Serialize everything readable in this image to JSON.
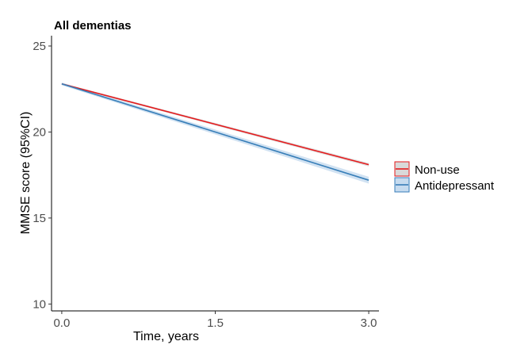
{
  "chart_data": {
    "type": "line",
    "title": "All dementias",
    "xlabel": "Time, years",
    "ylabel": "MMSE score (95%CI)",
    "xlim": [
      -0.1,
      3.1
    ],
    "ylim": [
      9.6,
      25.6
    ],
    "xticks": [
      0.0,
      1.5,
      3.0
    ],
    "xtick_labels": [
      "0.0",
      "1.5",
      "3.0"
    ],
    "yticks": [
      10,
      15,
      20,
      25
    ],
    "ytick_labels": [
      "10",
      "15",
      "20",
      "25"
    ],
    "grid": false,
    "legend_position": "right",
    "series": [
      {
        "name": "Non-use",
        "color": "#e41a1c",
        "band_color": "#d9d9d9",
        "x": [
          0.0,
          3.0
        ],
        "y": [
          22.8,
          18.1
        ],
        "lower": [
          22.75,
          18.0
        ],
        "upper": [
          22.85,
          18.2
        ]
      },
      {
        "name": "Antidepressant",
        "color": "#377eb8",
        "band_color": "#c6dbef",
        "x": [
          0.0,
          3.0
        ],
        "y": [
          22.8,
          17.2
        ],
        "lower": [
          22.72,
          17.0
        ],
        "upper": [
          22.88,
          17.4
        ]
      }
    ]
  }
}
